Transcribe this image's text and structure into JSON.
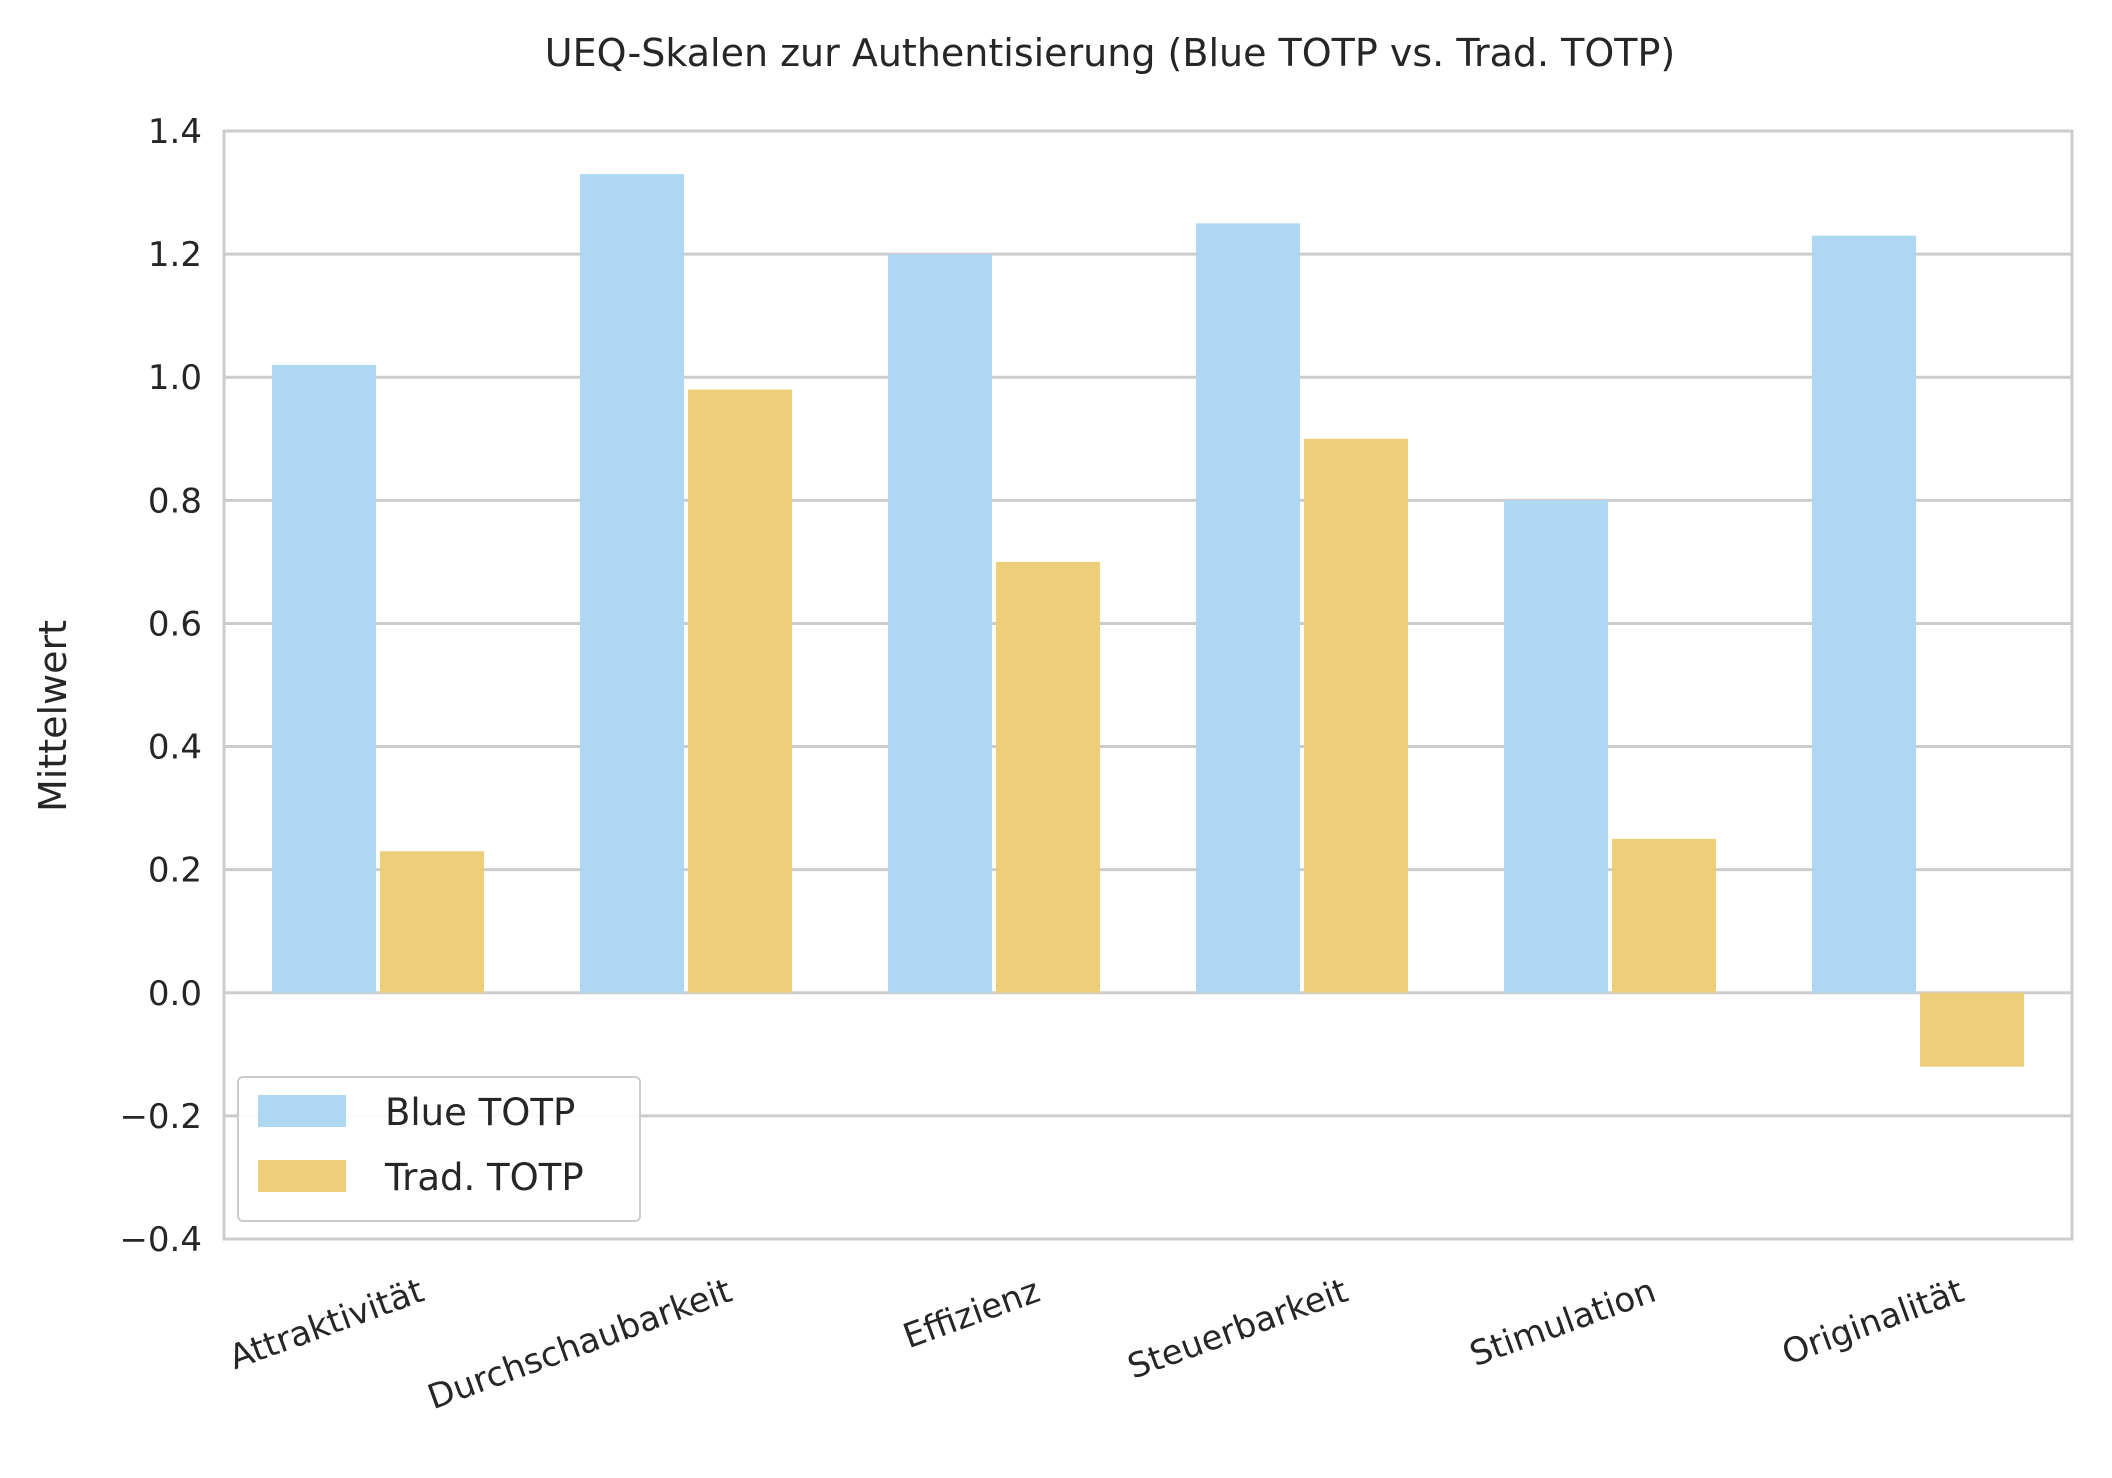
{
  "chart_data": {
    "type": "bar",
    "title": "UEQ-Skalen zur Authentisierung (Blue TOTP vs. Trad. TOTP)",
    "xlabel": "",
    "ylabel": "Mittelwert",
    "ylim": [
      -0.4,
      1.4
    ],
    "yticks": [
      "1.4",
      "1.2",
      "1.0",
      "0.8",
      "0.6",
      "0.4",
      "0.2",
      "0.0",
      "−0.2",
      "−0.4"
    ],
    "ytick_values": [
      1.4,
      1.2,
      1.0,
      0.8,
      0.6,
      0.4,
      0.2,
      0.0,
      -0.2,
      -0.4
    ],
    "categories": [
      "Attraktivität",
      "Durchschaubarkeit",
      "Effizienz",
      "Steuerbarkeit",
      "Stimulation",
      "Originalität"
    ],
    "series": [
      {
        "name": "Blue TOTP",
        "color": "#aed8f2",
        "values": [
          1.02,
          1.33,
          1.2,
          1.25,
          0.8,
          1.23
        ]
      },
      {
        "name": "Trad. TOTP",
        "color": "#edcf7b",
        "values": [
          0.23,
          0.98,
          0.7,
          0.9,
          0.25,
          -0.12
        ]
      }
    ],
    "grid": true,
    "legend_position": "lower-left",
    "tick_label_rotation": "angled"
  }
}
